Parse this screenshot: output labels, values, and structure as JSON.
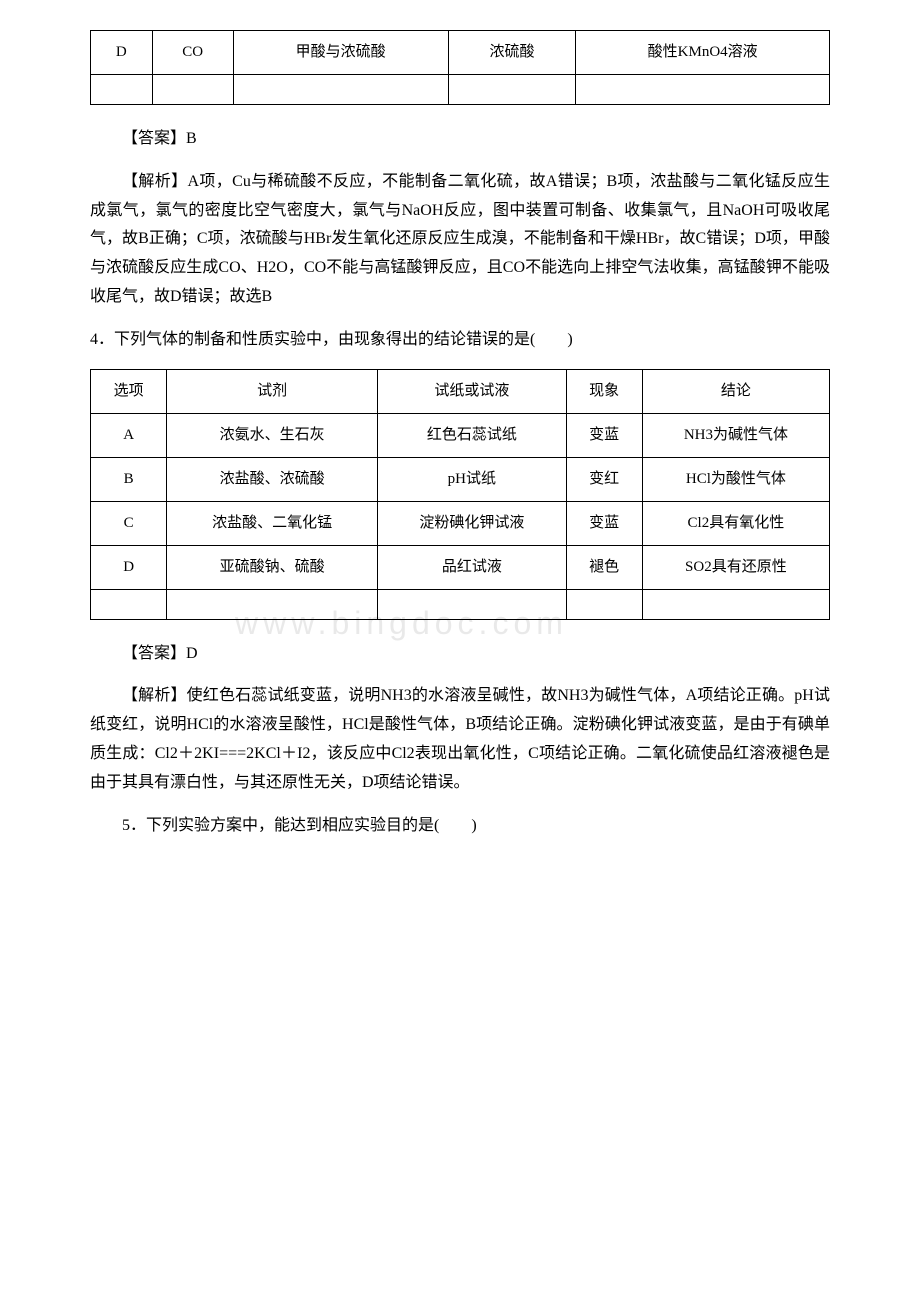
{
  "table1": {
    "row1": {
      "c1": "D",
      "c2": "CO",
      "c3": "甲酸与浓硫酸",
      "c4": "浓硫酸",
      "c5": "酸性KMnO4溶液"
    }
  },
  "answer1": {
    "label": "【答案】B"
  },
  "explanation1": {
    "text": "【解析】A项，Cu与稀硫酸不反应，不能制备二氧化硫，故A错误；B项，浓盐酸与二氧化锰反应生成氯气，氯气的密度比空气密度大，氯气与NaOH反应，图中装置可制备、收集氯气，且NaOH可吸收尾气，故B正确；C项，浓硫酸与HBr发生氧化还原反应生成溴，不能制备和干燥HBr，故C错误；D项，甲酸与浓硫酸反应生成CO、H2O，CO不能与高锰酸钾反应，且CO不能选向上排空气法收集，高锰酸钾不能吸收尾气，故D错误；故选B"
  },
  "question4": {
    "text": "4．下列气体的制备和性质实验中，由现象得出的结论错误的是(　　)"
  },
  "table2": {
    "header": {
      "c1": "选项",
      "c2": "试剂",
      "c3": "试纸或试液",
      "c4": "现象",
      "c5": "结论"
    },
    "rowA": {
      "c1": "A",
      "c2": "浓氨水、生石灰",
      "c3": "红色石蕊试纸",
      "c4": "变蓝",
      "c5": "NH3为碱性气体"
    },
    "rowB": {
      "c1": "B",
      "c2": "浓盐酸、浓硫酸",
      "c3": "pH试纸",
      "c4": "变红",
      "c5": "HCl为酸性气体"
    },
    "rowC": {
      "c1": "C",
      "c2": "浓盐酸、二氧化锰",
      "c3": "淀粉碘化钾试液",
      "c4": "变蓝",
      "c5": "Cl2具有氧化性"
    },
    "rowD": {
      "c1": "D",
      "c2": "亚硫酸钠、硫酸",
      "c3": "品红试液",
      "c4": "褪色",
      "c5": "SO2具有还原性"
    }
  },
  "answer2": {
    "label": "【答案】D"
  },
  "explanation2": {
    "text": "【解析】使红色石蕊试纸变蓝，说明NH3的水溶液呈碱性，故NH3为碱性气体，A项结论正确。pH试纸变红，说明HCl的水溶液呈酸性，HCl是酸性气体，B项结论正确。淀粉碘化钾试液变蓝，是由于有碘单质生成：Cl2＋2KI===2KCl＋I2，该反应中Cl2表现出氧化性，C项结论正确。二氧化硫使品红溶液褪色是由于其具有漂白性，与其还原性无关，D项结论错误。"
  },
  "question5": {
    "text": "5．下列实验方案中，能达到相应实验目的是(　　)"
  },
  "watermark": {
    "text": "www.bingdoc.com"
  }
}
